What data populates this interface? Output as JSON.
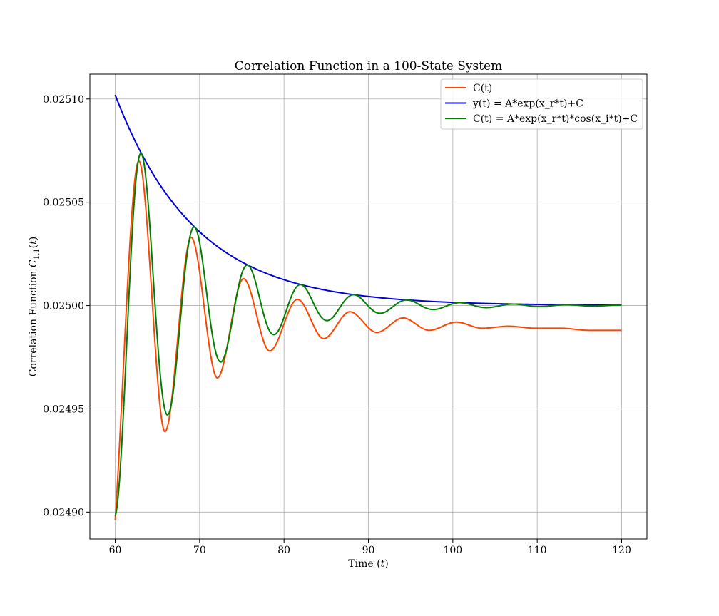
{
  "chart_data": {
    "type": "line",
    "title": "Correlation Function in a 100-State System",
    "xlabel": "Time",
    "xlabel_unit": "t",
    "ylabel": "Correlation Function",
    "ylabel_symbol": "C",
    "ylabel_subscript": "1,1",
    "ylabel_arg": "t",
    "xlim": [
      57,
      123
    ],
    "ylim": [
      0.024887,
      0.025112
    ],
    "x_ticks": [
      60,
      70,
      80,
      90,
      100,
      110,
      120
    ],
    "x_tick_labels": [
      "60",
      "70",
      "80",
      "90",
      "100",
      "110",
      "120"
    ],
    "y_ticks": [
      0.0249,
      0.02495,
      0.025,
      0.02505,
      0.0251
    ],
    "y_tick_labels": [
      "0.02490",
      "0.02495",
      "0.02500",
      "0.02505",
      "0.02510"
    ],
    "grid": true,
    "legend_position": "top-right",
    "x_range": [
      60,
      120
    ],
    "series": [
      {
        "name": "C(t)",
        "color": "#ff4500",
        "x": [
          60,
          62.8,
          65.9,
          69.0,
          72.1,
          75.2,
          78.3,
          81.6,
          84.7,
          87.8,
          91.0,
          94.1,
          97.2,
          100.4,
          103.5,
          106.6,
          109.8,
          112.9,
          116.1,
          120
        ],
        "y": [
          0.024896,
          0.02507,
          0.024939,
          0.025033,
          0.024965,
          0.025013,
          0.024978,
          0.025003,
          0.024984,
          0.024997,
          0.024987,
          0.024994,
          0.024988,
          0.024992,
          0.024989,
          0.02499,
          0.024989,
          0.024989,
          0.024988,
          0.024988
        ]
      },
      {
        "name": "y(t) = A*exp(x_r*t)+C",
        "color": "#0000dd",
        "amplitude": 0.000102,
        "decay_rate": 0.105,
        "offset": 0.025
      },
      {
        "name": "C(t) = A*exp(x_r*t)*cos(x_i*t)+C",
        "color": "#008000",
        "amplitude": 0.000102,
        "decay_rate": 0.105,
        "period": 6.3,
        "x_start": 60,
        "offset": 0.025
      }
    ]
  }
}
